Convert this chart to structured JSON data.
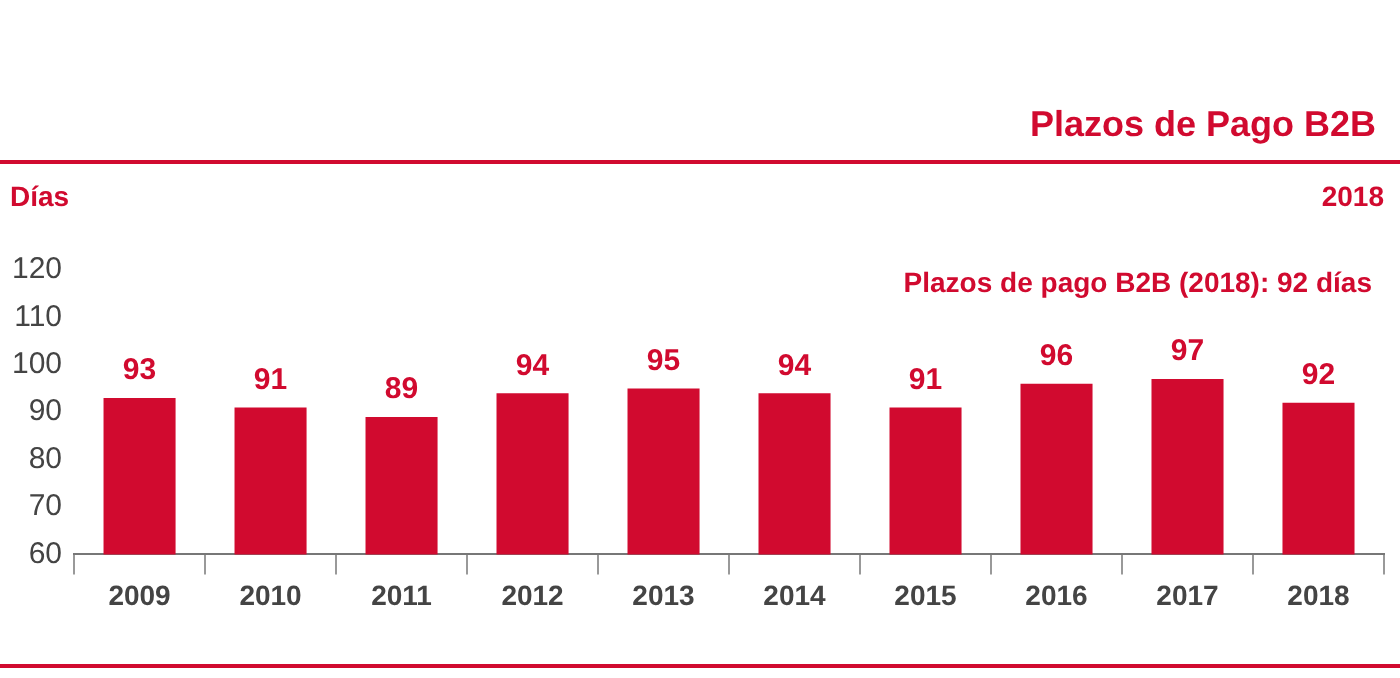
{
  "chart_data": {
    "type": "bar",
    "title": "Plazos de Pago B2B",
    "subtitle": "2018",
    "ylabel": "Días",
    "annotations": [
      "Plazos de pago B2B (2018): 92 días"
    ],
    "categories": [
      "2009",
      "2010",
      "2011",
      "2012",
      "2013",
      "2014",
      "2015",
      "2016",
      "2017",
      "2018"
    ],
    "values": [
      93,
      91,
      89,
      94,
      95,
      94,
      91,
      96,
      97,
      92
    ],
    "color": "#d10a2f",
    "ylim": [
      60,
      120
    ],
    "yticks": [
      60,
      70,
      80,
      90,
      100,
      110,
      120
    ],
    "grid": false,
    "legend": false,
    "data_labels": true
  }
}
